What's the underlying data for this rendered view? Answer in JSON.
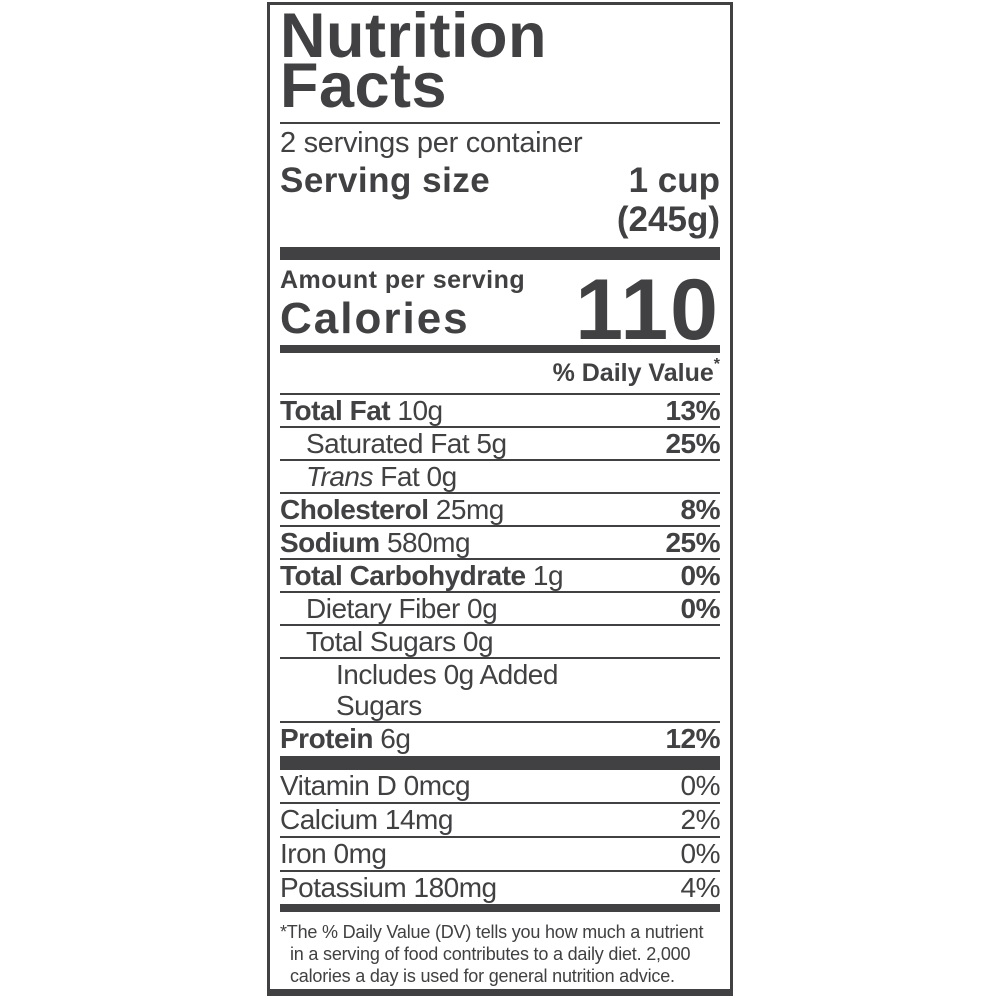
{
  "colors": {
    "ink": "#414042",
    "background": "#ffffff"
  },
  "header": {
    "title_line1": "Nutrition",
    "title_line2": "Facts",
    "servings_per_container": "2 servings per container",
    "serving_size_label": "Serving size",
    "serving_size_line1": "1 cup",
    "serving_size_line2": "(245g)"
  },
  "calories": {
    "amount_per_serving": "Amount per serving",
    "label": "Calories",
    "value": "110"
  },
  "daily_value": {
    "header": "% Daily Value",
    "asterisk": "*"
  },
  "nutrients": [
    {
      "bold": "Total Fat",
      "italic": "",
      "rest": " 10g",
      "pct": "13%"
    },
    {
      "bold": "",
      "italic": "",
      "rest": "Saturated Fat 5g",
      "pct": "25%"
    },
    {
      "bold": "",
      "italic": "Trans",
      "rest": " Fat 0g",
      "pct": ""
    },
    {
      "bold": "Cholesterol",
      "italic": "",
      "rest": " 25mg",
      "pct": "8%"
    },
    {
      "bold": "Sodium",
      "italic": "",
      "rest": " 580mg",
      "pct": "25%"
    },
    {
      "bold": "Total Carbohydrate",
      "italic": "",
      "rest": " 1g",
      "pct": "0%"
    },
    {
      "bold": "",
      "italic": "",
      "rest": "Dietary Fiber 0g",
      "pct": "0%"
    },
    {
      "bold": "",
      "italic": "",
      "rest": "Total Sugars 0g",
      "pct": ""
    },
    {
      "bold": "",
      "italic": "",
      "rest": "Includes 0g Added Sugars",
      "pct": ""
    },
    {
      "bold": "Protein",
      "italic": "",
      "rest": " 6g",
      "pct": "12%"
    }
  ],
  "vitamins": [
    {
      "name": "Vitamin D 0mcg",
      "pct": "0%"
    },
    {
      "name": "Calcium 14mg",
      "pct": "2%"
    },
    {
      "name": "Iron 0mg",
      "pct": "0%"
    },
    {
      "name": "Potassium 180mg",
      "pct": "4%"
    }
  ],
  "footnote": "*The % Daily Value (DV) tells you how much a nutrient in a serving of food contributes to a daily diet. 2,000 calories a day is used for general nutrition advice."
}
